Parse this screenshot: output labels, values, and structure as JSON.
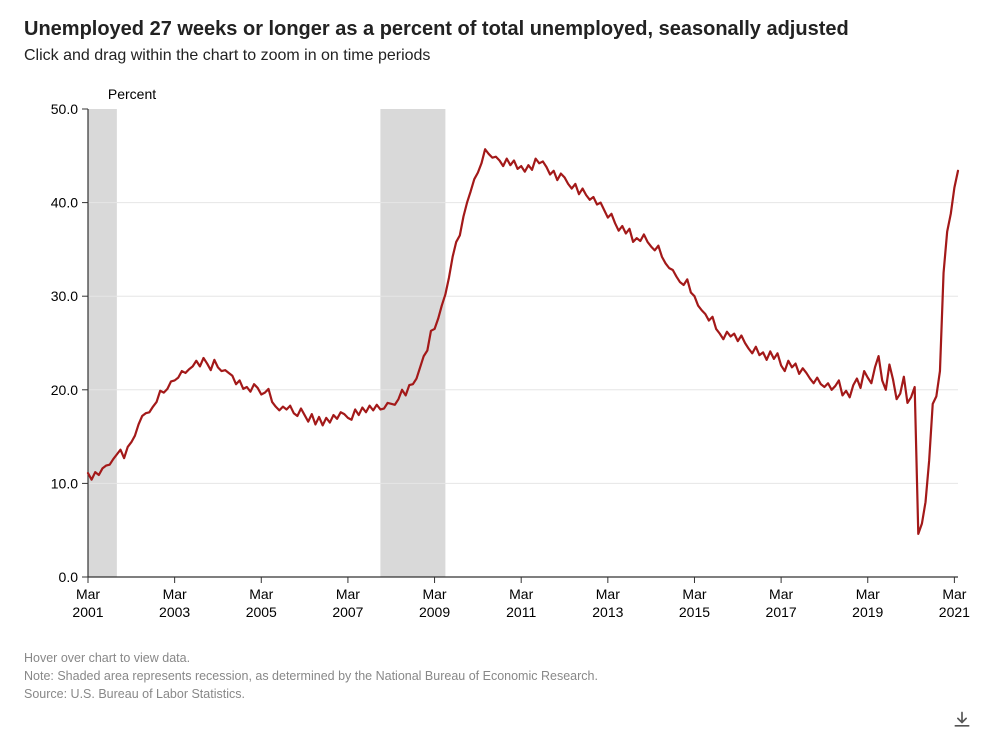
{
  "title": "Unemployed 27 weeks or longer as a percent of total unemployed, seasonally adjusted",
  "subtitle": "Click and drag within the chart to zoom in on time periods",
  "footer_hover": "Hover over chart to view data.",
  "footer_note": "Note: Shaded area represents recession, as determined by the National Bureau of Economic Research.",
  "footer_source": "Source: U.S. Bureau of Labor Statistics.",
  "chart": {
    "type": "line",
    "background_color": "#ffffff",
    "line_color": "#a31919",
    "line_width": 2.2,
    "recession_fill": "#d9d9d9",
    "axis_color": "#333333",
    "grid_color": "#e6e6e6",
    "text_color": "#000000",
    "tick_fontsize": 14,
    "axis_title_fontsize": 14,
    "y_axis_title": "Percent",
    "ylim": [
      0,
      50
    ],
    "ytick_step": 10,
    "y_ticks": [
      "0.0",
      "10.0",
      "20.0",
      "30.0",
      "40.0",
      "50.0"
    ],
    "x_start_year": 2001,
    "x_start_month": 3,
    "x_end_index": 241,
    "x_tick_indices": [
      0,
      24,
      48,
      72,
      96,
      120,
      144,
      168,
      192,
      216,
      240
    ],
    "x_tick_labels_top": [
      "Mar",
      "Mar",
      "Mar",
      "Mar",
      "Mar",
      "Mar",
      "Mar",
      "Mar",
      "Mar",
      "Mar",
      "Mar"
    ],
    "x_tick_labels_bot": [
      "2001",
      "2003",
      "2005",
      "2007",
      "2009",
      "2011",
      "2013",
      "2015",
      "2017",
      "2019",
      "2021"
    ],
    "recessions": [
      {
        "start_index": 0,
        "end_index": 8
      },
      {
        "start_index": 81,
        "end_index": 99
      }
    ],
    "series": [
      11.1,
      10.4,
      11.2,
      10.9,
      11.6,
      11.9,
      12.0,
      12.6,
      13.1,
      13.6,
      12.7,
      13.9,
      14.4,
      15.1,
      16.3,
      17.2,
      17.5,
      17.6,
      18.2,
      18.7,
      19.9,
      19.7,
      20.1,
      20.9,
      21.0,
      21.3,
      22.0,
      21.8,
      22.2,
      22.5,
      23.1,
      22.5,
      23.4,
      22.8,
      22.1,
      23.2,
      22.4,
      22.0,
      22.1,
      21.8,
      21.5,
      20.6,
      21.0,
      20.1,
      20.3,
      19.8,
      20.6,
      20.2,
      19.5,
      19.7,
      20.1,
      18.7,
      18.2,
      17.8,
      18.2,
      17.9,
      18.3,
      17.5,
      17.2,
      18.0,
      17.3,
      16.6,
      17.4,
      16.3,
      17.1,
      16.2,
      17.0,
      16.5,
      17.3,
      16.9,
      17.6,
      17.4,
      17.0,
      16.8,
      17.9,
      17.3,
      18.1,
      17.6,
      18.3,
      17.8,
      18.4,
      17.9,
      18.0,
      18.6,
      18.5,
      18.4,
      19.0,
      20.0,
      19.4,
      20.5,
      20.6,
      21.2,
      22.4,
      23.6,
      24.2,
      26.3,
      26.5,
      27.6,
      29.0,
      30.2,
      32.0,
      34.2,
      35.8,
      36.5,
      38.5,
      40.0,
      41.2,
      42.5,
      43.2,
      44.2,
      45.7,
      45.2,
      44.8,
      44.9,
      44.5,
      43.9,
      44.7,
      44.0,
      44.5,
      43.6,
      43.9,
      43.3,
      44.0,
      43.5,
      44.7,
      44.2,
      44.4,
      43.8,
      43.0,
      43.4,
      42.4,
      43.1,
      42.7,
      42.0,
      41.5,
      42.0,
      40.9,
      41.5,
      40.8,
      40.3,
      40.6,
      39.8,
      40.0,
      39.2,
      38.4,
      38.8,
      37.8,
      37.0,
      37.5,
      36.7,
      37.2,
      35.8,
      36.2,
      35.9,
      36.6,
      35.8,
      35.3,
      34.9,
      35.4,
      34.2,
      33.5,
      33.0,
      32.8,
      32.1,
      31.5,
      31.2,
      31.8,
      30.4,
      30.0,
      29.0,
      28.5,
      28.1,
      27.4,
      27.8,
      26.5,
      26.0,
      25.4,
      26.2,
      25.7,
      26.0,
      25.2,
      25.8,
      25.0,
      24.4,
      23.9,
      24.6,
      23.7,
      24.0,
      23.2,
      24.1,
      23.3,
      23.9,
      22.6,
      22.0,
      23.1,
      22.4,
      22.8,
      21.7,
      22.3,
      21.8,
      21.2,
      20.7,
      21.3,
      20.6,
      20.3,
      20.7,
      20.0,
      20.4,
      21.0,
      19.4,
      19.9,
      19.2,
      20.5,
      21.2,
      20.2,
      22.0,
      21.3,
      20.7,
      22.4,
      23.6,
      21.0,
      20.0,
      22.7,
      21.1,
      19.0,
      19.6,
      21.4,
      18.6,
      19.2,
      20.3,
      4.6,
      5.7,
      8.0,
      12.4,
      18.5,
      19.3,
      22.0,
      32.5,
      36.9,
      38.8,
      41.6,
      43.4
    ]
  }
}
